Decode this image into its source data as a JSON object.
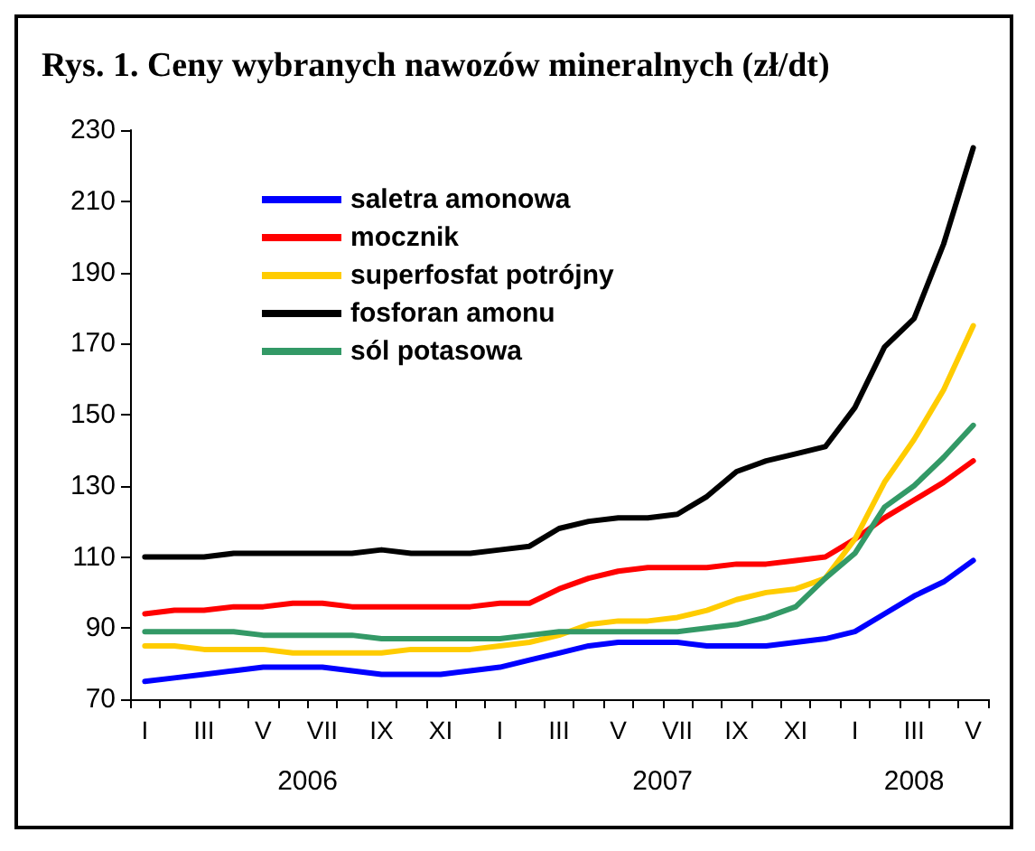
{
  "chart_data": {
    "type": "line",
    "title": "Rys. 1. Ceny wybranych nawozów mineralnych (zł/dt)",
    "categories": [
      "I",
      null,
      "III",
      null,
      "V",
      null,
      "VII",
      null,
      "IX",
      null,
      "XI",
      null,
      "I",
      null,
      "III",
      null,
      "V",
      null,
      "VII",
      null,
      "IX",
      null,
      "XI",
      null,
      "I",
      null,
      "III",
      null,
      "V"
    ],
    "series": [
      {
        "name": "saletra amonowa",
        "color": "#0000ff",
        "values": [
          75,
          76,
          77,
          78,
          79,
          79,
          79,
          78,
          77,
          77,
          77,
          78,
          79,
          81,
          83,
          85,
          86,
          86,
          86,
          85,
          85,
          85,
          86,
          87,
          89,
          94,
          99,
          103,
          109
        ]
      },
      {
        "name": "mocznik",
        "color": "#ff0000",
        "values": [
          94,
          95,
          95,
          96,
          96,
          97,
          97,
          96,
          96,
          96,
          96,
          96,
          97,
          97,
          101,
          104,
          106,
          107,
          107,
          107,
          108,
          108,
          109,
          110,
          115,
          121,
          126,
          131,
          137
        ]
      },
      {
        "name": "superfosfat potrójny",
        "color": "#ffcc00",
        "values": [
          85,
          85,
          84,
          84,
          84,
          83,
          83,
          83,
          83,
          84,
          84,
          84,
          85,
          86,
          88,
          91,
          92,
          92,
          93,
          95,
          98,
          100,
          101,
          104,
          115,
          131,
          143,
          157,
          175
        ]
      },
      {
        "name": "fosforan amonu",
        "color": "#000000",
        "values": [
          110,
          110,
          110,
          111,
          111,
          111,
          111,
          111,
          112,
          111,
          111,
          111,
          112,
          113,
          118,
          120,
          121,
          121,
          122,
          127,
          134,
          137,
          139,
          141,
          152,
          169,
          177,
          198,
          225
        ]
      },
      {
        "name": "sól potasowa",
        "color": "#339966",
        "values": [
          89,
          89,
          89,
          89,
          88,
          88,
          88,
          88,
          87,
          87,
          87,
          87,
          87,
          88,
          89,
          89,
          89,
          89,
          89,
          90,
          91,
          93,
          96,
          104,
          111,
          124,
          130,
          138,
          147
        ]
      }
    ],
    "ylim": [
      70,
      230
    ],
    "yticks": [
      70,
      90,
      110,
      130,
      150,
      170,
      190,
      210,
      230
    ],
    "annotations": [
      "2006",
      "2007",
      "2008"
    ],
    "legend": "top left",
    "grid": false,
    "marker": "none",
    "line_style": "solid"
  }
}
